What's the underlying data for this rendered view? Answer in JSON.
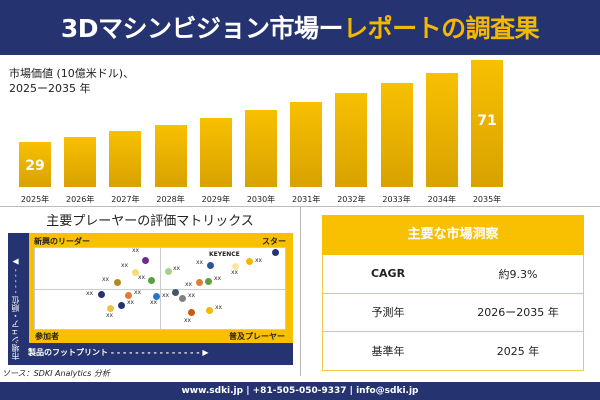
{
  "header": {
    "title_main": "3Dマシンビジョン市場ー",
    "title_highlight": "レポートの調査果"
  },
  "chart_data": {
    "type": "bar",
    "subtitle_line1": "市場価値 (10億米ドル)、",
    "subtitle_line2": "2025ー2035 年",
    "categories": [
      "2025年",
      "2026年",
      "2027年",
      "2028年",
      "2029年",
      "2030年",
      "2031年",
      "2032年",
      "2033年",
      "2034年",
      "2035年"
    ],
    "values": [
      29,
      31.7,
      34.6,
      37.8,
      41.3,
      45.2,
      49.4,
      54,
      59,
      64.5,
      71
    ],
    "data_labels": {
      "first": "29",
      "last": "71"
    },
    "bar_color": "#f8c000"
  },
  "matrix": {
    "title": "主要プレーヤーの評価マトリックス",
    "q_tl": "新興のリーダー",
    "q_tr": "スター",
    "q_bl": "参加者",
    "q_br": "普及プレーヤー",
    "y_axis": "市場シェア・順位",
    "x_axis": "製品のフットプリント",
    "highlight_label": "KEYENCE",
    "point_label": "xx",
    "point_colors": [
      "#6a2c91",
      "#f3dc7a",
      "#5aa040",
      "#b08a20",
      "#a8d08d",
      "#2f5597",
      "#fbe5a0",
      "#f5b800",
      "#253470",
      "#e07b39",
      "#5aa040",
      "#e07b39",
      "#1f78c8",
      "#253470",
      "#253470",
      "#f5c040",
      "#44546a",
      "#808080",
      "#c55a11",
      "#f5b800"
    ]
  },
  "source": "ソース：SDKI Analytics 分析",
  "insights": {
    "title": "主要な市場洞察",
    "rows": [
      {
        "label": "CAGR",
        "value": "約9.3%"
      },
      {
        "label": "予測年",
        "value": "2026ー2035 年"
      },
      {
        "label": "基準年",
        "value": "2025 年"
      }
    ]
  },
  "footer": "www.sdki.jp | +81-505-050-9337 | info@sdki.jp",
  "colors": {
    "navy": "#253470",
    "accent": "#f8c000"
  }
}
